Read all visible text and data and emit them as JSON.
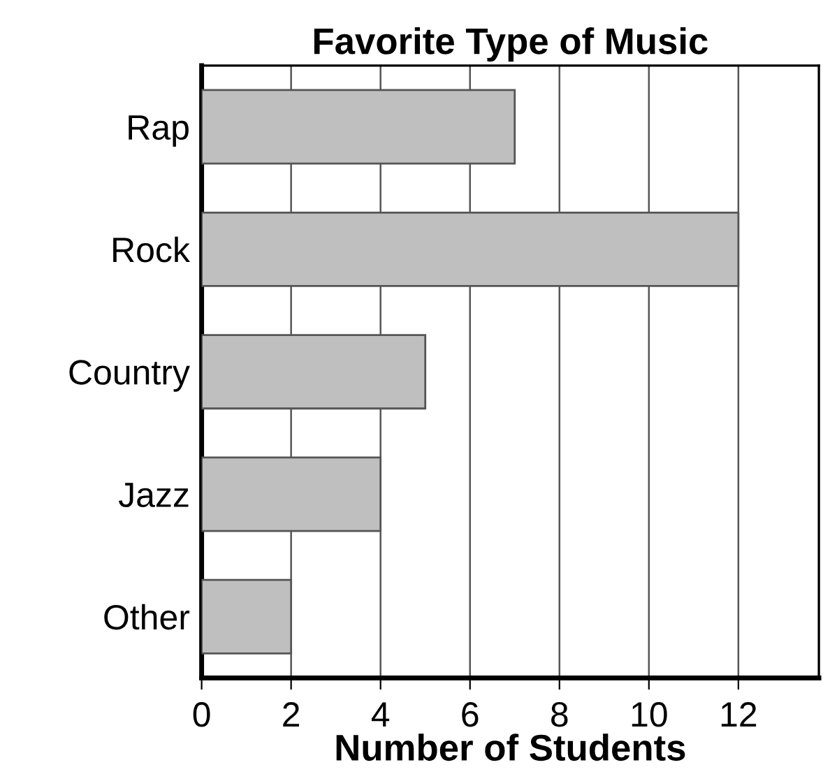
{
  "chart_data": {
    "type": "bar",
    "orientation": "horizontal",
    "title": "Favorite Type of Music",
    "xlabel": "Number of Students",
    "categories": [
      "Rap",
      "Rock",
      "Country",
      "Jazz",
      "Other"
    ],
    "values": [
      7,
      12,
      5,
      4,
      2
    ],
    "color": "#bfbfbf",
    "xlim": [
      0,
      13.8
    ],
    "xticks": [
      0,
      2,
      4,
      6,
      8,
      10,
      12
    ],
    "grid": "x"
  }
}
